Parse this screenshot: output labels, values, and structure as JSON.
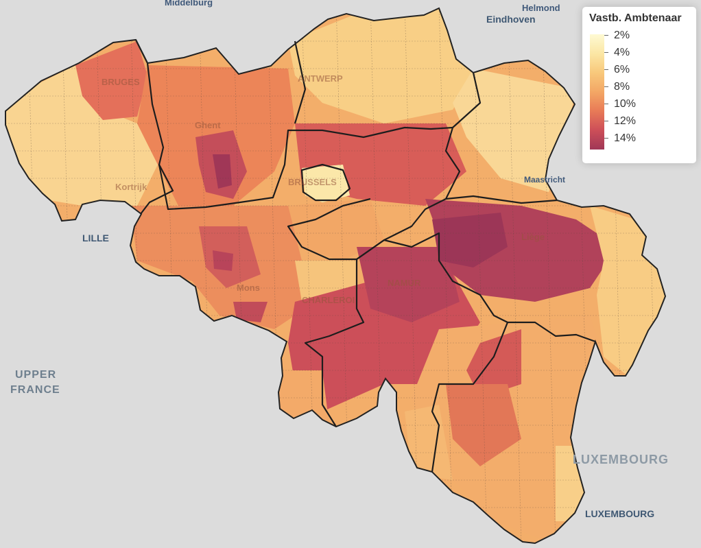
{
  "legend": {
    "title": "Vastb. Ambtenaar",
    "items": [
      "2%",
      "4%",
      "6%",
      "8%",
      "10%",
      "12%",
      "14%"
    ],
    "colors": [
      "#fefad3",
      "#fbe6a4",
      "#f8c97c",
      "#f3a765",
      "#e97c57",
      "#cd4f58",
      "#a03757"
    ]
  },
  "labels": {
    "middelburg": "Middelburg",
    "helmond": "Helmond",
    "eindhoven": "Eindhoven",
    "maastricht": "Maastricht",
    "lille": "LILLE",
    "upper_france": [
      "UPPER",
      "FRANCE"
    ],
    "luxembourg_region": "LUXEMBOURG",
    "luxembourg_city": "LUXEMBOURG",
    "bruges": "BRUGES",
    "antwerp": "ANTWERP",
    "ghent": "Ghent",
    "kortrijk": "Kortrijk",
    "brussels": "BRUSSELS",
    "liege": "Liège",
    "namur": "NAMUR",
    "charleroi": "CHARLEROI",
    "mons": "Mons"
  }
}
